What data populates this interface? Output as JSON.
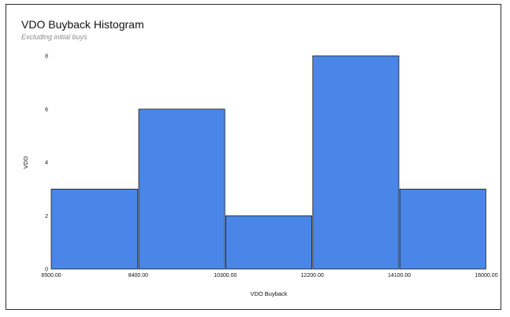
{
  "chart_data": {
    "type": "histogram",
    "title": "VDO Buyback Histogram",
    "subtitle": "Excluding initial buys",
    "xlabel": "VDO Buyback",
    "ylabel": "VDO",
    "bins": [
      {
        "start": 6500.0,
        "end": 8400.0,
        "count": 3
      },
      {
        "start": 8400.0,
        "end": 10300.0,
        "count": 6
      },
      {
        "start": 10300.0,
        "end": 12200.0,
        "count": 2
      },
      {
        "start": 12200.0,
        "end": 14100.0,
        "count": 8
      },
      {
        "start": 14100.0,
        "end": 16000.0,
        "count": 3
      }
    ],
    "x_ticks": [
      "6500.00",
      "8400.00",
      "10300.00",
      "12200.00",
      "14100.00",
      "16000.00"
    ],
    "x_tick_values": [
      6500,
      8400,
      10300,
      12200,
      14100,
      16000
    ],
    "y_ticks": [
      0,
      2,
      4,
      6,
      8
    ],
    "xlim": [
      6500,
      16000
    ],
    "ylim": [
      0,
      8
    ],
    "bar_color": "#4a86e8",
    "bar_stroke": "#1a1a1a",
    "grid": false
  }
}
